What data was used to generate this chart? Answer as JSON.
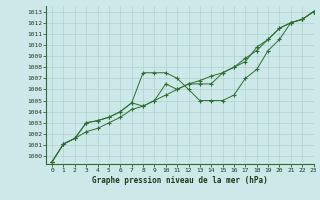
{
  "title": "Graphe pression niveau de la mer (hPa)",
  "background_color": "#cce8e8",
  "grid_color": "#b0d0d0",
  "line_color": "#2d6e2d",
  "marker": "+",
  "xlim": [
    -0.5,
    23
  ],
  "ylim": [
    999.3,
    1013.5
  ],
  "xticks": [
    0,
    1,
    2,
    3,
    4,
    5,
    6,
    7,
    8,
    9,
    10,
    11,
    12,
    13,
    14,
    15,
    16,
    17,
    18,
    19,
    20,
    21,
    22,
    23
  ],
  "yticks": [
    1000,
    1001,
    1002,
    1003,
    1004,
    1005,
    1006,
    1007,
    1008,
    1009,
    1010,
    1011,
    1012,
    1013
  ],
  "series": [
    [
      999.5,
      1001.1,
      1001.6,
      1003.0,
      1003.2,
      1003.5,
      1004.0,
      1004.8,
      1007.5,
      1007.5,
      1007.5,
      1007.0,
      1006.0,
      1005.0,
      1005.0,
      1005.0,
      1005.5,
      1007.0,
      1007.8,
      1009.5,
      1010.5,
      1012.0,
      1012.3,
      1013.0
    ],
    [
      999.5,
      1001.1,
      1001.6,
      1003.0,
      1003.2,
      1003.5,
      1004.0,
      1004.8,
      1004.5,
      1005.0,
      1006.5,
      1006.0,
      1006.5,
      1006.5,
      1006.5,
      1007.5,
      1008.0,
      1008.5,
      1009.8,
      1010.5,
      1011.5,
      1012.0,
      1012.3,
      1013.0
    ],
    [
      999.5,
      1001.1,
      1001.6,
      1002.2,
      1002.5,
      1003.0,
      1003.5,
      1004.2,
      1004.5,
      1005.0,
      1005.5,
      1006.0,
      1006.5,
      1006.8,
      1007.2,
      1007.5,
      1008.0,
      1008.8,
      1009.5,
      1010.5,
      1011.5,
      1012.0,
      1012.3,
      1013.0
    ]
  ]
}
